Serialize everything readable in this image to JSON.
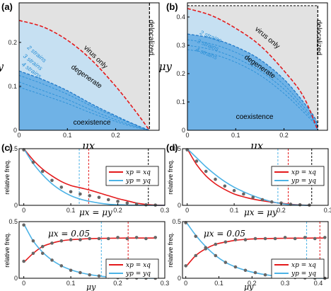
{
  "panel_labels": [
    "(a)",
    "(b)",
    "(c)",
    "(d)"
  ],
  "colors": {
    "coexistence": "#6fb2e6",
    "degenerate": "#c6e0f2",
    "virus_only": "#e2e2e2",
    "red": "#e41a1c",
    "blue": "#4db3e6",
    "point": "#666666"
  },
  "chart_data": [
    {
      "type": "area",
      "panel": "(a)",
      "xlabel": "μx",
      "ylabel": "μy",
      "xlim": [
        0,
        0.29
      ],
      "ylim": [
        0,
        0.29
      ],
      "xticks": [
        0,
        0.1,
        0.2
      ],
      "yticks": [
        0,
        0.1,
        0.2
      ],
      "regions": [
        "coexistence",
        "degenerate",
        "virus only",
        "delocalized"
      ],
      "strain_labels": [
        "2 strains",
        "3 strains",
        "4 strains"
      ],
      "red_boundary": {
        "x": [
          0,
          0.05,
          0.1,
          0.15,
          0.2,
          0.24,
          0.27
        ],
        "y": [
          0.25,
          0.235,
          0.205,
          0.16,
          0.1,
          0.045,
          0
        ]
      },
      "blue_boundary": {
        "x": [
          0,
          0.05,
          0.1,
          0.15,
          0.2,
          0.24,
          0.27
        ],
        "y": [
          0.135,
          0.115,
          0.09,
          0.06,
          0.033,
          0.013,
          0
        ]
      },
      "strain_curves": [
        {
          "name": "2 strains",
          "x": [
            0,
            0.05,
            0.1,
            0.15,
            0.2,
            0.24,
            0.27
          ],
          "y": [
            0.125,
            0.105,
            0.082,
            0.055,
            0.03,
            0.012,
            0
          ]
        },
        {
          "name": "3 strains",
          "x": [
            0,
            0.05,
            0.1,
            0.15,
            0.2,
            0.24,
            0.27
          ],
          "y": [
            0.11,
            0.09,
            0.07,
            0.046,
            0.024,
            0.009,
            0
          ]
        },
        {
          "name": "4 strains",
          "x": [
            0,
            0.05,
            0.1,
            0.15,
            0.2,
            0.24,
            0.27
          ],
          "y": [
            0.098,
            0.08,
            0.061,
            0.039,
            0.02,
            0.007,
            0
          ]
        }
      ],
      "delocalized_x": 0.27,
      "top_y": 0.29
    },
    {
      "type": "area",
      "panel": "(b)",
      "xlabel": "μx",
      "ylabel": "μy",
      "xlim": [
        0,
        0.29
      ],
      "ylim": [
        0,
        0.45
      ],
      "xticks": [
        0,
        0.1,
        0.2
      ],
      "yticks": [
        0,
        0.1,
        0.2,
        0.3,
        0.4
      ],
      "regions": [
        "coexistence",
        "degenerate",
        "virus only",
        "delocalized"
      ],
      "strain_labels": [
        "2 strains",
        "3 strains",
        "4 strains"
      ],
      "red_boundary": {
        "x": [
          0,
          0.05,
          0.1,
          0.15,
          0.2,
          0.24,
          0.27
        ],
        "y": [
          0.43,
          0.405,
          0.36,
          0.3,
          0.21,
          0.12,
          0
        ]
      },
      "blue_boundary": {
        "x": [
          0,
          0.05,
          0.1,
          0.15,
          0.2,
          0.24,
          0.265,
          0.27
        ],
        "y": [
          0.34,
          0.325,
          0.295,
          0.25,
          0.18,
          0.1,
          0.04,
          0
        ]
      },
      "strain_curves": [
        {
          "name": "2 strains",
          "x": [
            0,
            0.05,
            0.1,
            0.15,
            0.2,
            0.24,
            0.265,
            0.27
          ],
          "y": [
            0.32,
            0.305,
            0.275,
            0.23,
            0.16,
            0.085,
            0.03,
            0
          ]
        },
        {
          "name": "3 strains",
          "x": [
            0,
            0.05,
            0.1,
            0.15,
            0.2,
            0.24,
            0.265,
            0.27
          ],
          "y": [
            0.3,
            0.285,
            0.255,
            0.21,
            0.145,
            0.075,
            0.025,
            0
          ]
        },
        {
          "name": "4 strains",
          "x": [
            0,
            0.05,
            0.1,
            0.15,
            0.2,
            0.24,
            0.265,
            0.27
          ],
          "y": [
            0.285,
            0.27,
            0.24,
            0.195,
            0.13,
            0.065,
            0.02,
            0
          ]
        }
      ],
      "delocalized_x": 0.27,
      "top_y": 0.44
    },
    {
      "type": "line",
      "panel": "(c) top",
      "ylabel": "relative freq.",
      "annotation": "μx = μy",
      "xlim": [
        -0.01,
        0.3
      ],
      "ylim": [
        0,
        0.5
      ],
      "xticks": [
        0,
        0.1,
        0.2,
        0.3
      ],
      "yticks": [
        0,
        0.5
      ],
      "series": [
        {
          "name": "xp = xq",
          "x": [
            0,
            0.02,
            0.04,
            0.06,
            0.08,
            0.1,
            0.12,
            0.14,
            0.16,
            0.18,
            0.2,
            0.22,
            0.24,
            0.26,
            0.28,
            0.3
          ],
          "y": [
            0.5,
            0.4,
            0.32,
            0.26,
            0.21,
            0.175,
            0.155,
            0.135,
            0.11,
            0.085,
            0.06,
            0.04,
            0.02,
            0.008,
            0.002,
            0
          ]
        },
        {
          "name": "yp = yq",
          "x": [
            0,
            0.02,
            0.04,
            0.06,
            0.08,
            0.1,
            0.12,
            0.14,
            0.16,
            0.18,
            0.2,
            0.22,
            0.24,
            0.26,
            0.28,
            0.3
          ],
          "y": [
            0.5,
            0.37,
            0.27,
            0.19,
            0.13,
            0.085,
            0.055,
            0.035,
            0.02,
            0.01,
            0.005,
            0.002,
            0.001,
            0,
            0,
            0
          ]
        }
      ],
      "points": {
        "x": [
          0,
          0.02,
          0.04,
          0.06,
          0.08,
          0.1,
          0.12,
          0.14,
          0.16,
          0.18,
          0.2,
          0.22,
          0.24,
          0.26,
          0.28
        ],
        "y": [
          0.49,
          0.38,
          0.3,
          0.22,
          0.16,
          0.12,
          0.1,
          0.085,
          0.07,
          0.05,
          0.035,
          0.02,
          0.01,
          0.004,
          0.002
        ]
      },
      "vlines": [
        {
          "x": 0.118,
          "color": "blue"
        },
        {
          "x": 0.138,
          "color": "red"
        },
        {
          "x": 0.265,
          "color": "black"
        }
      ]
    },
    {
      "type": "line",
      "panel": "(c) bottom",
      "ylabel": "relative freq.",
      "xlabel": "μy",
      "annotation": "μx = 0.05",
      "xlim": [
        -0.01,
        0.3
      ],
      "ylim": [
        0,
        0.5
      ],
      "xticks": [
        0,
        0.1,
        0.2,
        0.3
      ],
      "yticks": [
        0,
        0.5
      ],
      "series": [
        {
          "name": "xp = xq",
          "x": [
            0,
            0.02,
            0.04,
            0.06,
            0.08,
            0.1,
            0.12,
            0.14,
            0.16,
            0.18,
            0.2,
            0.22,
            0.24,
            0.26,
            0.28
          ],
          "y": [
            0.14,
            0.22,
            0.28,
            0.31,
            0.33,
            0.34,
            0.345,
            0.35,
            0.352,
            0.353,
            0.354,
            0.355,
            0.355,
            0.355,
            0.355
          ]
        },
        {
          "name": "yp = yq",
          "x": [
            0,
            0.02,
            0.04,
            0.06,
            0.08,
            0.1,
            0.12,
            0.14,
            0.16,
            0.18,
            0.2,
            0.22,
            0.24,
            0.26,
            0.28
          ],
          "y": [
            0.48,
            0.33,
            0.23,
            0.16,
            0.11,
            0.075,
            0.05,
            0.033,
            0.02,
            0.012,
            0.007,
            0.004,
            0.002,
            0.001,
            0
          ]
        }
      ],
      "points": {
        "x": [
          0,
          0.02,
          0.04,
          0.06,
          0.08,
          0.1,
          0.12,
          0.14,
          0.16,
          0.18,
          0.2,
          0.22,
          0.24,
          0.26,
          0.28
        ],
        "y": [
          0.15,
          0.22,
          0.28,
          0.31,
          0.33,
          0.34,
          0.34,
          0.35,
          0.35,
          0.35,
          0.36,
          0.35,
          0.36,
          0.35,
          0.36
        ]
      },
      "points2": {
        "x": [
          0,
          0.02,
          0.04,
          0.06,
          0.08,
          0.1,
          0.12,
          0.14,
          0.16,
          0.18,
          0.2,
          0.22,
          0.24,
          0.26,
          0.28
        ],
        "y": [
          0.47,
          0.33,
          0.22,
          0.16,
          0.11,
          0.07,
          0.05,
          0.03,
          0.02,
          0.01,
          0.005,
          0.003,
          0.002,
          0.001,
          0
        ]
      },
      "vlines": [
        {
          "x": 0.165,
          "color": "blue"
        },
        {
          "x": 0.222,
          "color": "red"
        }
      ]
    },
    {
      "type": "line",
      "panel": "(d) top",
      "ylabel": "relative freq.",
      "annotation": "μx = μy",
      "xlim": [
        -0.01,
        0.3
      ],
      "ylim": [
        0,
        0.5
      ],
      "xticks": [
        0,
        0.1,
        0.2,
        0.3
      ],
      "yticks": [
        0,
        0.5
      ],
      "series": [
        {
          "name": "xp = xq",
          "x": [
            0,
            0.02,
            0.04,
            0.06,
            0.08,
            0.1,
            0.12,
            0.14,
            0.16,
            0.18,
            0.2,
            0.22,
            0.24,
            0.26
          ],
          "y": [
            0.5,
            0.36,
            0.26,
            0.19,
            0.14,
            0.1,
            0.075,
            0.055,
            0.04,
            0.028,
            0.018,
            0.01,
            0.004,
            0
          ]
        },
        {
          "name": "yp = yq",
          "x": [
            0,
            0.02,
            0.04,
            0.06,
            0.08,
            0.1,
            0.12,
            0.14,
            0.16,
            0.18,
            0.2,
            0.22,
            0.24,
            0.26
          ],
          "y": [
            0.5,
            0.42,
            0.34,
            0.27,
            0.21,
            0.16,
            0.12,
            0.085,
            0.055,
            0.032,
            0.015,
            0.006,
            0.002,
            0
          ]
        }
      ],
      "points": {
        "x": [
          0,
          0.02,
          0.04,
          0.06,
          0.08,
          0.1,
          0.12,
          0.14,
          0.16,
          0.18,
          0.2,
          0.22,
          0.24,
          0.26
        ],
        "y": [
          0.49,
          0.39,
          0.3,
          0.23,
          0.17,
          0.13,
          0.1,
          0.07,
          0.05,
          0.03,
          0.02,
          0.01,
          0.005,
          0.002
        ]
      },
      "vlines": [
        {
          "x": 0.193,
          "color": "blue"
        },
        {
          "x": 0.215,
          "color": "red"
        },
        {
          "x": 0.265,
          "color": "black"
        }
      ]
    },
    {
      "type": "line",
      "panel": "(d) bottom",
      "ylabel": "relative freq.",
      "xlabel": "μy",
      "annotation": "μx = 0.05",
      "xlim": [
        -0.01,
        0.43
      ],
      "ylim": [
        0,
        0.5
      ],
      "xticks": [
        0,
        0.1,
        0.2,
        0.3,
        0.4
      ],
      "yticks": [
        0,
        0.5
      ],
      "series": [
        {
          "name": "xp = xq",
          "x": [
            0,
            0.03,
            0.06,
            0.09,
            0.12,
            0.15,
            0.18,
            0.21,
            0.24,
            0.27,
            0.3,
            0.33,
            0.36,
            0.39,
            0.42
          ],
          "y": [
            0.1,
            0.2,
            0.26,
            0.3,
            0.32,
            0.335,
            0.343,
            0.348,
            0.35,
            0.352,
            0.353,
            0.354,
            0.354,
            0.355,
            0.355
          ]
        },
        {
          "name": "yp = yq",
          "x": [
            0,
            0.03,
            0.06,
            0.09,
            0.12,
            0.15,
            0.18,
            0.21,
            0.24,
            0.27,
            0.3,
            0.33,
            0.36,
            0.39,
            0.42
          ],
          "y": [
            0.5,
            0.38,
            0.28,
            0.2,
            0.14,
            0.1,
            0.07,
            0.048,
            0.032,
            0.02,
            0.012,
            0.006,
            0.003,
            0.001,
            0
          ]
        }
      ],
      "points": {
        "x": [
          0,
          0.03,
          0.06,
          0.09,
          0.12,
          0.15,
          0.18,
          0.21,
          0.24,
          0.27,
          0.3,
          0.33,
          0.36,
          0.39,
          0.42
        ],
        "y": [
          0.11,
          0.2,
          0.26,
          0.3,
          0.32,
          0.34,
          0.34,
          0.35,
          0.35,
          0.35,
          0.36,
          0.35,
          0.36,
          0.35,
          0.36
        ]
      },
      "points2": {
        "x": [
          0,
          0.03,
          0.06,
          0.09,
          0.12,
          0.15,
          0.18,
          0.21,
          0.24,
          0.27,
          0.3,
          0.33,
          0.36,
          0.39,
          0.42
        ],
        "y": [
          0.49,
          0.37,
          0.27,
          0.2,
          0.14,
          0.1,
          0.07,
          0.05,
          0.03,
          0.02,
          0.01,
          0.006,
          0.003,
          0.001,
          0
        ]
      },
      "vlines": [
        {
          "x": 0.365,
          "color": "blue"
        },
        {
          "x": 0.405,
          "color": "red"
        }
      ]
    }
  ],
  "legend": {
    "red": "xp = xq",
    "blue": "yp = yq"
  }
}
